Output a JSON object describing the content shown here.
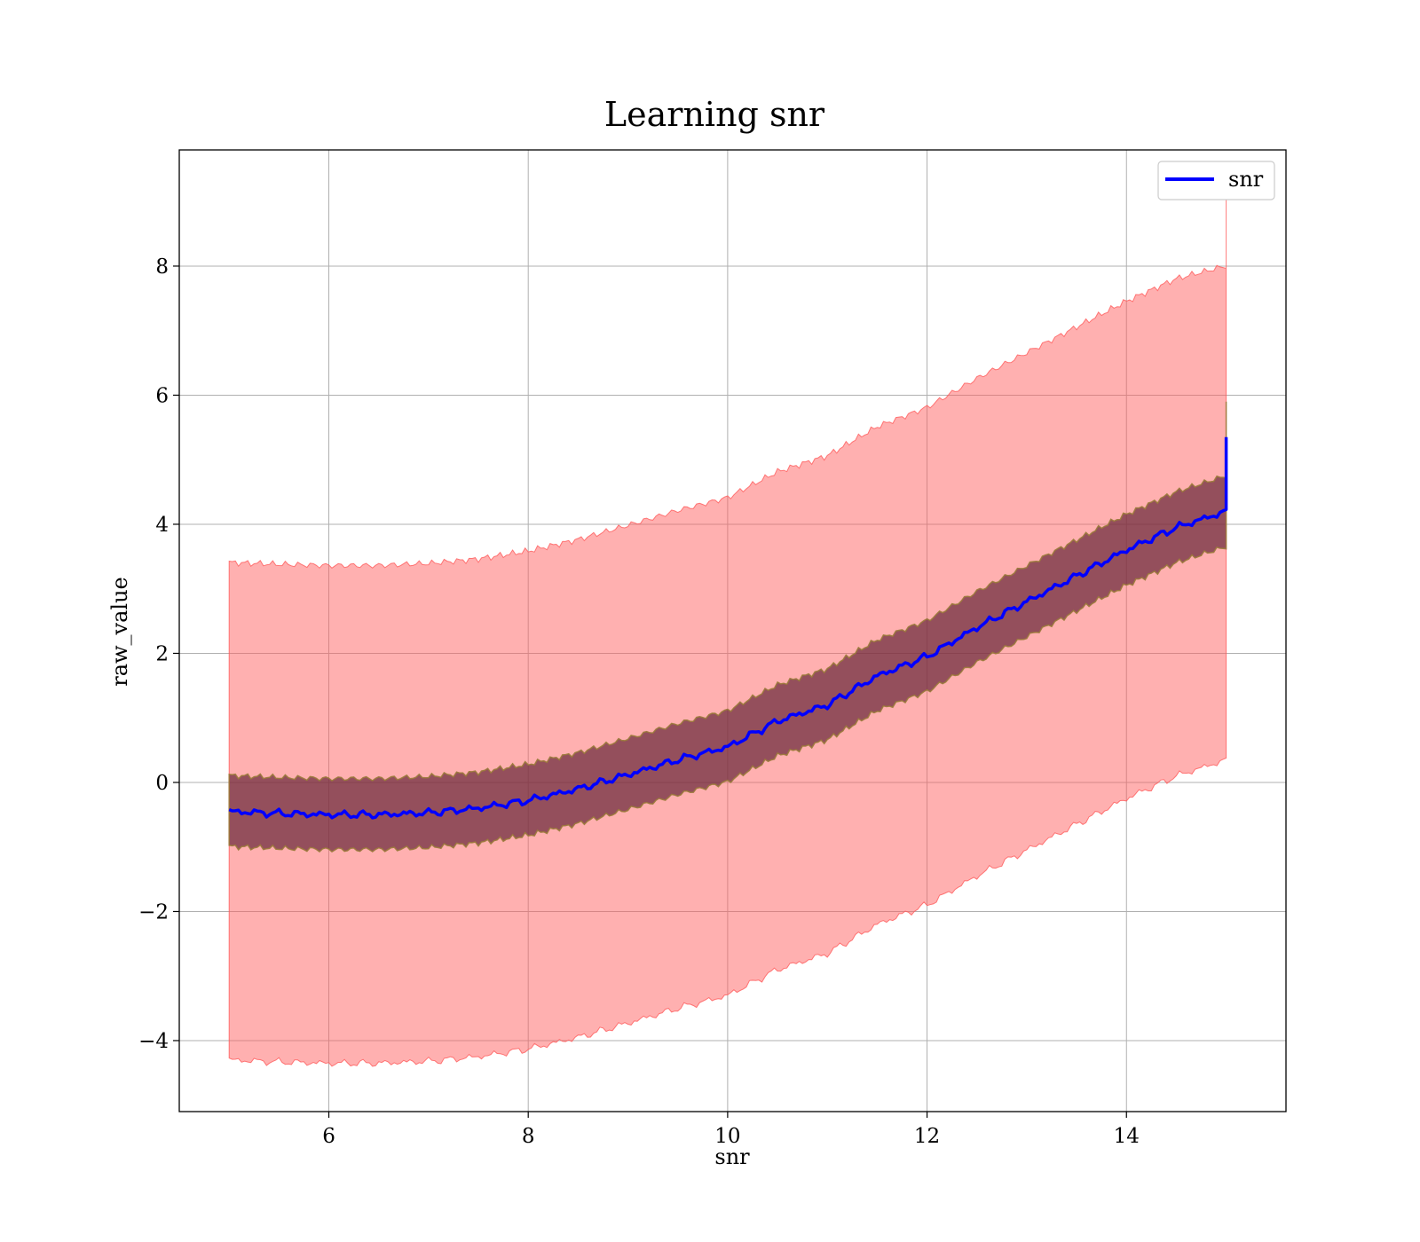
{
  "chart_data": {
    "type": "line",
    "title": "Learning snr",
    "xlabel": "snr",
    "ylabel": "raw_value",
    "xlim": [
      4.5,
      15.6
    ],
    "ylim": [
      -5.1,
      9.8
    ],
    "xticks": [
      6,
      8,
      10,
      12,
      14
    ],
    "yticks": [
      -4,
      -2,
      0,
      2,
      4,
      6,
      8
    ],
    "xtick_labels": [
      "6",
      "8",
      "10",
      "12",
      "14"
    ],
    "ytick_labels": [
      "−4",
      "−2",
      "0",
      "2",
      "4",
      "6",
      "8"
    ],
    "grid": true,
    "legend": {
      "placement": "top-right",
      "entries": [
        "snr"
      ]
    },
    "colors": {
      "line": "#0000ff",
      "outer_band": "#ff5a5a",
      "inner_band": "#6b2a3c",
      "inner_band_edge": "#9a7a3a"
    },
    "x": [
      5.0,
      5.5,
      6.0,
      6.5,
      7.0,
      7.5,
      8.0,
      8.5,
      9.0,
      9.5,
      10.0,
      10.5,
      11.0,
      11.5,
      12.0,
      12.5,
      13.0,
      13.5,
      14.0,
      14.5,
      15.0
    ],
    "series": [
      {
        "name": "snr",
        "values": [
          -0.45,
          -0.48,
          -0.5,
          -0.5,
          -0.47,
          -0.4,
          -0.28,
          -0.1,
          0.12,
          0.35,
          0.55,
          0.95,
          1.2,
          1.65,
          1.95,
          2.4,
          2.8,
          3.2,
          3.6,
          3.95,
          4.2
        ],
        "inner_band": {
          "lower": [
            -1.0,
            -1.03,
            -1.05,
            -1.05,
            -1.02,
            -0.95,
            -0.83,
            -0.65,
            -0.43,
            -0.2,
            0.0,
            0.4,
            0.65,
            1.1,
            1.4,
            1.85,
            2.25,
            2.65,
            3.05,
            3.4,
            3.65
          ],
          "upper": [
            0.1,
            0.07,
            0.05,
            0.05,
            0.08,
            0.15,
            0.27,
            0.45,
            0.67,
            0.9,
            1.1,
            1.5,
            1.75,
            2.2,
            2.5,
            2.95,
            3.35,
            3.75,
            4.15,
            4.5,
            4.75
          ]
        },
        "outer_band": {
          "lower": [
            -4.3,
            -4.33,
            -4.35,
            -4.35,
            -4.32,
            -4.25,
            -4.13,
            -3.95,
            -3.73,
            -3.5,
            -3.3,
            -2.9,
            -2.65,
            -2.2,
            -1.9,
            -1.45,
            -1.05,
            -0.65,
            -0.25,
            0.1,
            0.35
          ],
          "upper": [
            3.4,
            3.37,
            3.35,
            3.35,
            3.38,
            3.45,
            3.57,
            3.75,
            3.97,
            4.2,
            4.4,
            4.8,
            5.05,
            5.5,
            5.8,
            6.25,
            6.65,
            7.05,
            7.45,
            7.8,
            8.0
          ]
        },
        "end_spike": {
          "x": 15.0,
          "line_value": 5.35,
          "outer_upper": 9.1,
          "inner_upper": 5.9
        }
      }
    ]
  }
}
